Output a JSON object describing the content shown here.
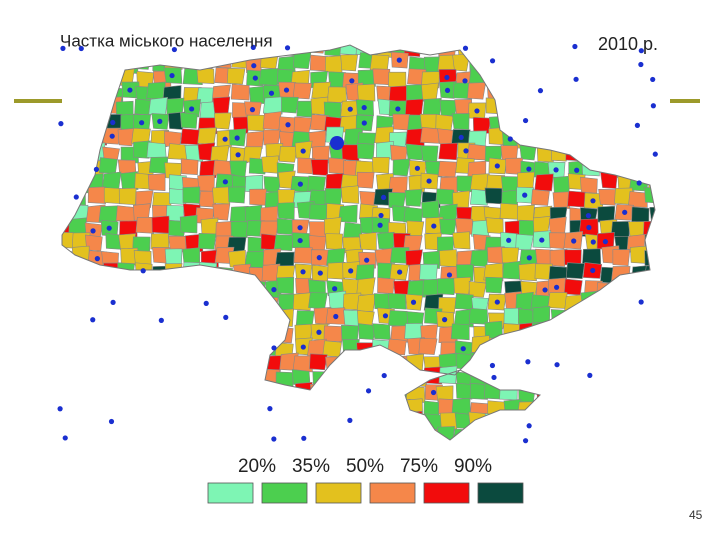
{
  "map": {
    "title": "Частка міського населення",
    "year": "2010 р.",
    "legend": {
      "labels": [
        "20%",
        "35%",
        "50%",
        "75%",
        "90%"
      ],
      "colors": [
        "#7ef5b4",
        "#4ccf4f",
        "#e3c11e",
        "#f5874a",
        "#f20c0c",
        "#0b4a3e"
      ]
    }
  },
  "slide": {
    "page_number": "45"
  }
}
